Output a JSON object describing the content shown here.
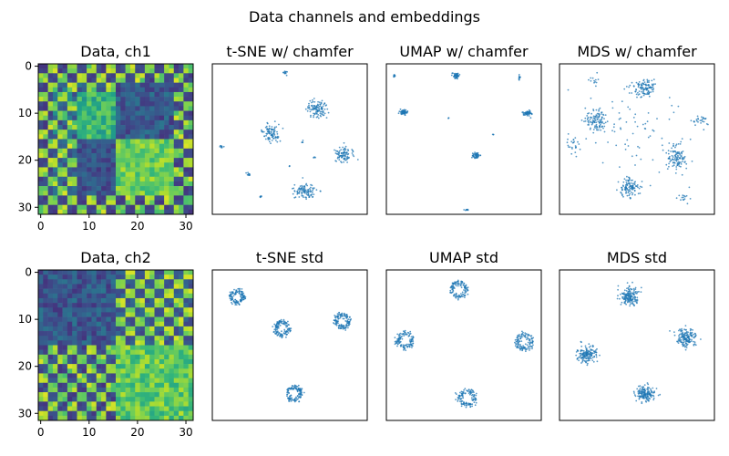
{
  "chart_data": {
    "type": "figure-grid",
    "suptitle": "Data channels and embeddings",
    "colors": {
      "points": "#1f77b4",
      "frame": "#000000"
    },
    "heatmap_ticks": {
      "x": [
        0,
        10,
        20,
        30
      ],
      "y": [
        0,
        10,
        20,
        30
      ]
    },
    "panels": [
      {
        "id": "data-ch1",
        "type": "heatmap",
        "title": "Data, ch1",
        "size": 32,
        "channel": 1,
        "notes": "checkerboard of low/high values with a 4-block pattern; top-left quadrant mixed, top-right low, bottom-left low, bottom-right high"
      },
      {
        "id": "tsne-chamfer",
        "type": "scatter",
        "title": "t-SNE w/ chamfer",
        "clusters": [
          {
            "cx": 0.47,
            "cy": 0.06,
            "sx": 0.012,
            "sy": 0.012,
            "n": 12
          },
          {
            "cx": 0.68,
            "cy": 0.3,
            "sx": 0.05,
            "sy": 0.05,
            "n": 110
          },
          {
            "cx": 0.38,
            "cy": 0.46,
            "sx": 0.045,
            "sy": 0.045,
            "n": 90
          },
          {
            "cx": 0.85,
            "cy": 0.6,
            "sx": 0.05,
            "sy": 0.045,
            "n": 90
          },
          {
            "cx": 0.6,
            "cy": 0.85,
            "sx": 0.055,
            "sy": 0.04,
            "n": 100
          },
          {
            "cx": 0.06,
            "cy": 0.55,
            "sx": 0.01,
            "sy": 0.01,
            "n": 10
          },
          {
            "cx": 0.23,
            "cy": 0.73,
            "sx": 0.01,
            "sy": 0.01,
            "n": 10
          },
          {
            "cx": 0.31,
            "cy": 0.88,
            "sx": 0.008,
            "sy": 0.008,
            "n": 8
          },
          {
            "cx": 0.58,
            "cy": 0.52,
            "sx": 0.006,
            "sy": 0.006,
            "n": 5
          },
          {
            "cx": 0.66,
            "cy": 0.62,
            "sx": 0.005,
            "sy": 0.005,
            "n": 4
          },
          {
            "cx": 0.5,
            "cy": 0.68,
            "sx": 0.004,
            "sy": 0.004,
            "n": 3
          }
        ]
      },
      {
        "id": "umap-chamfer",
        "type": "scatter",
        "title": "UMAP w/ chamfer",
        "clusters": [
          {
            "cx": 0.05,
            "cy": 0.08,
            "sx": 0.008,
            "sy": 0.008,
            "n": 10
          },
          {
            "cx": 0.45,
            "cy": 0.08,
            "sx": 0.02,
            "sy": 0.015,
            "n": 60
          },
          {
            "cx": 0.86,
            "cy": 0.09,
            "sx": 0.005,
            "sy": 0.012,
            "n": 12
          },
          {
            "cx": 0.11,
            "cy": 0.32,
            "sx": 0.02,
            "sy": 0.014,
            "n": 60
          },
          {
            "cx": 0.4,
            "cy": 0.36,
            "sx": 0.004,
            "sy": 0.004,
            "n": 3
          },
          {
            "cx": 0.91,
            "cy": 0.33,
            "sx": 0.022,
            "sy": 0.014,
            "n": 60
          },
          {
            "cx": 0.69,
            "cy": 0.47,
            "sx": 0.004,
            "sy": 0.004,
            "n": 3
          },
          {
            "cx": 0.58,
            "cy": 0.61,
            "sx": 0.02,
            "sy": 0.016,
            "n": 60
          },
          {
            "cx": 0.52,
            "cy": 0.97,
            "sx": 0.012,
            "sy": 0.004,
            "n": 10
          }
        ]
      },
      {
        "id": "mds-chamfer",
        "type": "scatter",
        "title": "MDS w/ chamfer",
        "clusters": [
          {
            "cx": 0.55,
            "cy": 0.16,
            "sx": 0.07,
            "sy": 0.05,
            "n": 110
          },
          {
            "cx": 0.24,
            "cy": 0.38,
            "sx": 0.06,
            "sy": 0.06,
            "n": 110
          },
          {
            "cx": 0.76,
            "cy": 0.63,
            "sx": 0.05,
            "sy": 0.07,
            "n": 110
          },
          {
            "cx": 0.45,
            "cy": 0.82,
            "sx": 0.06,
            "sy": 0.05,
            "n": 110
          },
          {
            "cx": 0.09,
            "cy": 0.54,
            "sx": 0.04,
            "sy": 0.07,
            "n": 25
          },
          {
            "cx": 0.91,
            "cy": 0.38,
            "sx": 0.05,
            "sy": 0.03,
            "n": 25
          },
          {
            "cx": 0.8,
            "cy": 0.89,
            "sx": 0.03,
            "sy": 0.04,
            "n": 15
          },
          {
            "cx": 0.22,
            "cy": 0.1,
            "sx": 0.04,
            "sy": 0.03,
            "n": 12
          },
          {
            "cx": 0.5,
            "cy": 0.45,
            "sx": 0.25,
            "sy": 0.25,
            "n": 70
          }
        ]
      },
      {
        "id": "data-ch2",
        "type": "heatmap",
        "title": "Data, ch2",
        "size": 32,
        "channel": 2,
        "notes": "left half low with checkerboard bottom-left, right half high with checkerboard top-right"
      },
      {
        "id": "tsne-std",
        "type": "scatter",
        "title": "t-SNE std",
        "clusters": [
          {
            "cx": 0.16,
            "cy": 0.18,
            "sx": 0.07,
            "sy": 0.06,
            "n": 130,
            "ring": 0.045
          },
          {
            "cx": 0.45,
            "cy": 0.39,
            "sx": 0.06,
            "sy": 0.06,
            "n": 130,
            "ring": 0.05
          },
          {
            "cx": 0.84,
            "cy": 0.34,
            "sx": 0.06,
            "sy": 0.06,
            "n": 130,
            "ring": 0.05
          },
          {
            "cx": 0.53,
            "cy": 0.82,
            "sx": 0.06,
            "sy": 0.06,
            "n": 130,
            "ring": 0.05
          }
        ]
      },
      {
        "id": "umap-std",
        "type": "scatter",
        "title": "UMAP std",
        "clusters": [
          {
            "cx": 0.47,
            "cy": 0.13,
            "sx": 0.03,
            "sy": 0.03,
            "n": 120,
            "ring": 0.055
          },
          {
            "cx": 0.12,
            "cy": 0.47,
            "sx": 0.03,
            "sy": 0.03,
            "n": 120,
            "ring": 0.055
          },
          {
            "cx": 0.89,
            "cy": 0.48,
            "sx": 0.03,
            "sy": 0.03,
            "n": 120,
            "ring": 0.055
          },
          {
            "cx": 0.52,
            "cy": 0.85,
            "sx": 0.03,
            "sy": 0.03,
            "n": 120,
            "ring": 0.055
          }
        ]
      },
      {
        "id": "mds-std",
        "type": "scatter",
        "title": "MDS std",
        "clusters": [
          {
            "cx": 0.45,
            "cy": 0.18,
            "sx": 0.05,
            "sy": 0.05,
            "n": 160
          },
          {
            "cx": 0.18,
            "cy": 0.56,
            "sx": 0.05,
            "sy": 0.05,
            "n": 160
          },
          {
            "cx": 0.82,
            "cy": 0.45,
            "sx": 0.05,
            "sy": 0.05,
            "n": 160
          },
          {
            "cx": 0.55,
            "cy": 0.82,
            "sx": 0.05,
            "sy": 0.04,
            "n": 160
          }
        ]
      }
    ]
  }
}
